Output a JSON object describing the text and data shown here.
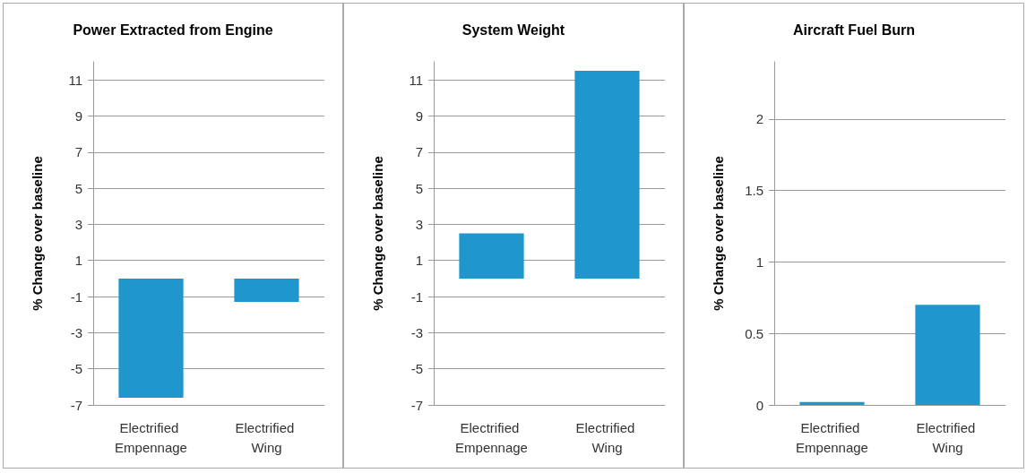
{
  "chart_data": [
    {
      "type": "bar",
      "title": "Power Extracted from Engine",
      "ylabel": "% Change over baseline",
      "categories": [
        "Electrified Empennage",
        "Electrified Wing"
      ],
      "values": [
        -6.6,
        -1.3
      ],
      "color": "#1f97cc",
      "ylim": [
        -7,
        12
      ],
      "yticks": [
        -7,
        -5,
        -3,
        -1,
        1,
        3,
        5,
        7,
        9,
        11
      ],
      "grid": "y"
    },
    {
      "type": "bar",
      "title": "System Weight",
      "ylabel": "% Change over baseline",
      "categories": [
        "Electrified Empennage",
        "Electrified Wing"
      ],
      "values": [
        2.5,
        11.5
      ],
      "color": "#1f97cc",
      "ylim": [
        -7,
        12
      ],
      "yticks": [
        -7,
        -5,
        -3,
        -1,
        1,
        3,
        5,
        7,
        9,
        11
      ],
      "grid": "y"
    },
    {
      "type": "bar",
      "title": "Aircraft Fuel Burn",
      "ylabel": "% Change over baseline",
      "categories": [
        "Electrified Empennage",
        "Electrified Wing"
      ],
      "values": [
        0.02,
        0.7
      ],
      "color": "#1f97cc",
      "ylim": [
        0,
        2.4
      ],
      "yticks": [
        0,
        0.5,
        1,
        1.5,
        2
      ],
      "grid": "y"
    }
  ]
}
